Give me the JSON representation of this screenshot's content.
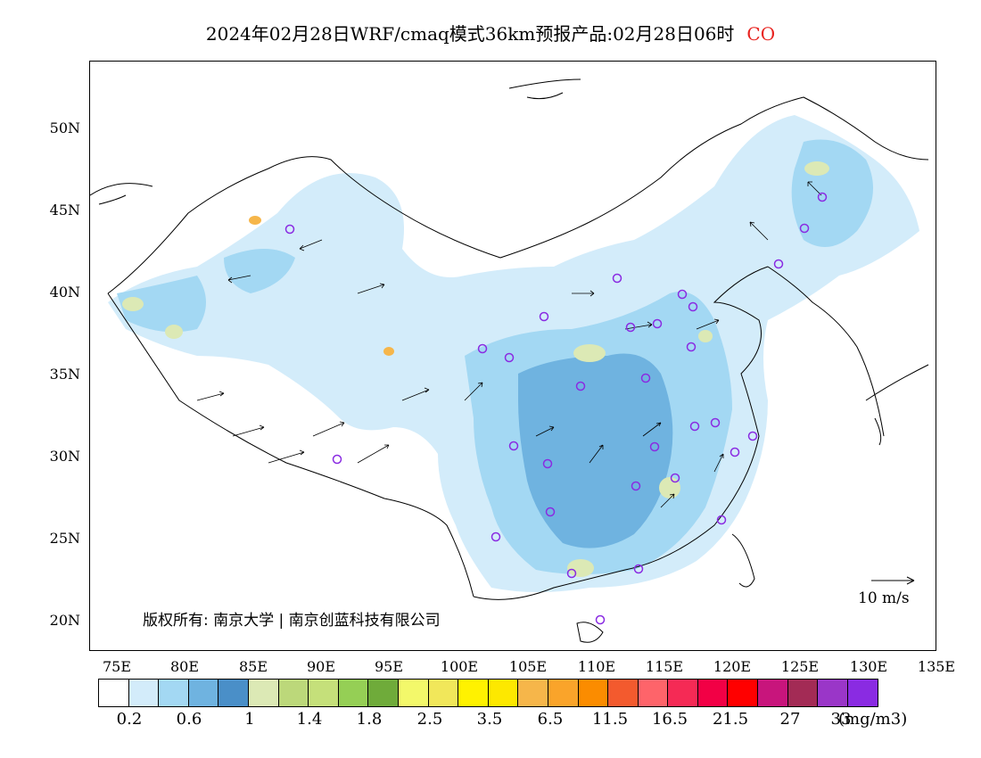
{
  "title": {
    "text": "2024年02月28日WRF/cmaq模式36km预报产品:02月28日06时",
    "species": "CO",
    "species_color": "#e8231f"
  },
  "map": {
    "lat_ticks": [
      "50N",
      "45N",
      "40N",
      "35N",
      "30N",
      "25N",
      "20N"
    ],
    "lon_ticks": [
      "75E",
      "80E",
      "85E",
      "90E",
      "95E",
      "100E",
      "105E",
      "110E",
      "115E",
      "120E",
      "125E",
      "130E",
      "135E"
    ],
    "copyright": "版权所有: 南京大学 | 南京创蓝科技有限公司",
    "wind_reference": "10 m/s",
    "station_marker_color": "#8a2be2"
  },
  "colorbar": {
    "colors": [
      "#ffffff",
      "#d3ecfa",
      "#a3d8f3",
      "#6fb3e0",
      "#4a8fc8",
      "#dce9b5",
      "#bcd87a",
      "#c5e07a",
      "#95cf55",
      "#6fab3a",
      "#f3f86a",
      "#f1e75a",
      "#fff200",
      "#fde800",
      "#f6b64a",
      "#faa42a",
      "#fb8c00",
      "#f35a2e",
      "#fe646a",
      "#f52a55",
      "#f20045",
      "#ff0000",
      "#c8157c",
      "#a32b55",
      "#9a36c8",
      "#8a2be2"
    ],
    "labels": [
      "0.2",
      "0.6",
      "1",
      "1.4",
      "1.8",
      "2.5",
      "3.5",
      "6.5",
      "11.5",
      "16.5",
      "21.5",
      "27",
      "33"
    ],
    "unit": "(mg/m3)"
  }
}
